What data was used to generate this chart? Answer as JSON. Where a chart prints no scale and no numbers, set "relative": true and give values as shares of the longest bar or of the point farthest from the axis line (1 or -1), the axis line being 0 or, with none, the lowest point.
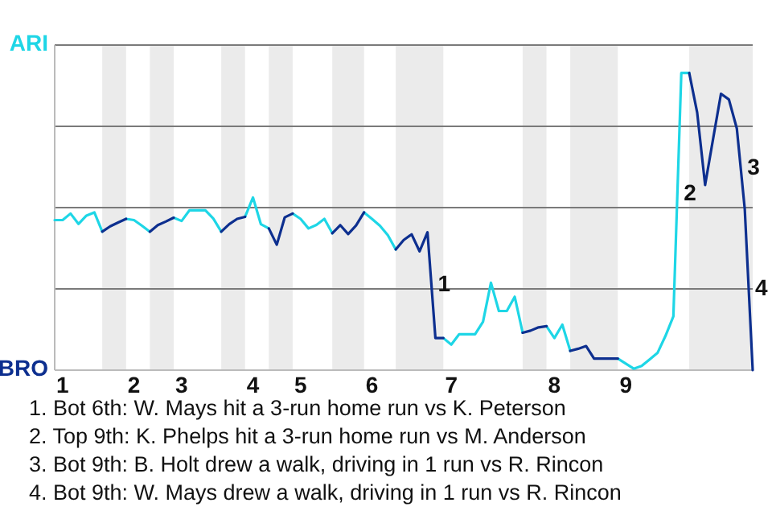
{
  "chart_data": {
    "type": "line",
    "relative": true,
    "categories": [
      null,
      "1",
      null,
      null,
      null,
      null,
      null,
      null,
      null,
      null,
      "2",
      null,
      null,
      null,
      null,
      null,
      "3",
      null,
      null,
      null,
      null,
      null,
      null,
      null,
      null,
      "4",
      null,
      null,
      null,
      null,
      null,
      "5",
      null,
      null,
      null,
      null,
      null,
      null,
      null,
      null,
      "6",
      null,
      null,
      null,
      null,
      null,
      null,
      null,
      null,
      null,
      "7",
      null,
      null,
      null,
      null,
      null,
      null,
      null,
      null,
      null,
      null,
      null,
      null,
      "8",
      null,
      null,
      null,
      null,
      null,
      null,
      null,
      null,
      "9",
      null,
      null,
      null,
      null,
      null,
      null,
      null,
      null,
      null,
      null,
      null,
      null,
      null,
      null,
      null,
      null
    ],
    "series": [
      {
        "color": "#1ed6e6",
        "values": [
          0.505,
          0.505,
          0.527,
          0.492,
          0.52,
          0.531,
          0.466,
          null,
          null,
          0.509,
          0.505,
          0.486,
          0.466,
          null,
          null,
          0.513,
          0.502,
          0.538,
          0.538,
          0.538,
          0.51,
          0.466,
          null,
          null,
          0.516,
          0.581,
          0.491,
          0.477,
          null,
          null,
          0.527,
          0.509,
          0.477,
          0.489,
          0.509,
          0.461,
          null,
          null,
          null,
          0.531,
          0.509,
          0.486,
          0.454,
          0.406,
          null,
          null,
          null,
          null,
          null,
          0.108,
          0.086,
          0.121,
          0.121,
          0.121,
          0.163,
          0.294,
          0.199,
          0.199,
          0.247,
          0.126,
          null,
          null,
          0.148,
          0.108,
          0.153,
          0.065,
          null,
          null,
          null,
          null,
          null,
          0.039,
          0.022,
          0.005,
          0.014,
          0.036,
          0.058,
          0.115,
          0.181,
          1,
          1,
          null,
          null,
          null,
          null,
          null,
          null,
          null,
          null
        ]
      },
      {
        "color": "#0d2f8f",
        "values": [
          null,
          null,
          null,
          null,
          null,
          null,
          0.466,
          0.484,
          0.497,
          0.509,
          null,
          null,
          0.466,
          0.488,
          0.5,
          0.513,
          null,
          null,
          null,
          null,
          null,
          0.466,
          0.491,
          0.509,
          0.516,
          null,
          null,
          0.477,
          0.422,
          0.514,
          0.527,
          null,
          null,
          null,
          null,
          0.461,
          0.488,
          0.458,
          0.487,
          0.531,
          null,
          null,
          null,
          0.406,
          0.438,
          0.457,
          0.4,
          0.464,
          0.108,
          0.108,
          null,
          null,
          null,
          null,
          null,
          null,
          null,
          null,
          null,
          0.126,
          0.133,
          0.144,
          0.148,
          null,
          null,
          0.065,
          0.072,
          0.081,
          0.039,
          0.039,
          0.039,
          0.039,
          null,
          null,
          null,
          null,
          null,
          null,
          null,
          null,
          1,
          0.867,
          0.623,
          0.777,
          0.93,
          0.911,
          0.813,
          0.542,
          0
        ]
      }
    ],
    "grid": "y",
    "annotations": [
      "ARI",
      "BRO",
      "1",
      "2",
      "3",
      "4",
      "1. Bot 6th: W. Mays hit a 3-run home run vs K. Peterson",
      "2. Top 9th: K. Phelps hit a 3-run home run vs M. Anderson",
      "3. Bot 9th: B. Holt drew a walk, driving in 1 run vs R. Rincon",
      "4. Bot 9th: W. Mays drew a walk, driving in 1 run vs R. Rincon"
    ]
  }
}
